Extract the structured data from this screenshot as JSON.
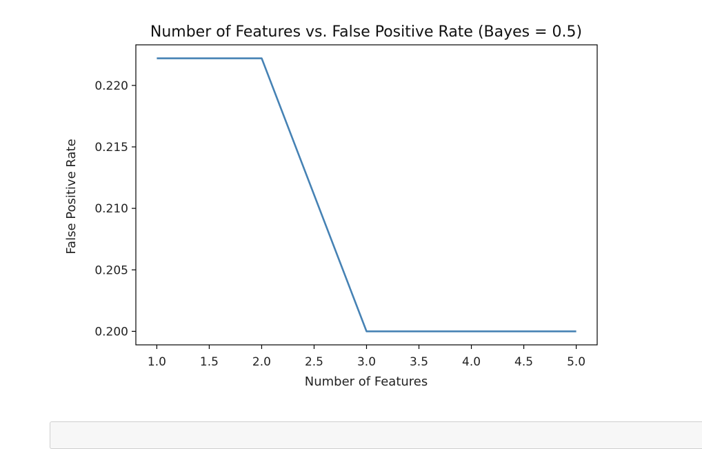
{
  "chart_data": {
    "type": "line",
    "title": "Number of Features vs. False Positive Rate (Bayes = 0.5)",
    "xlabel": "Number of Features",
    "ylabel": "False Positive Rate",
    "x": [
      1,
      2,
      3,
      4,
      5
    ],
    "series": [
      {
        "values": [
          0.2222,
          0.2222,
          0.2,
          0.2,
          0.2
        ],
        "color": "#4682b4"
      }
    ],
    "xlim": [
      0.8,
      5.2
    ],
    "ylim": [
      0.1989,
      0.2233
    ],
    "xticks": [
      "1.0",
      "1.5",
      "2.0",
      "2.5",
      "3.0",
      "3.5",
      "4.0",
      "4.5",
      "5.0"
    ],
    "yticks": [
      "0.200",
      "0.205",
      "0.210",
      "0.215",
      "0.220"
    ],
    "grid": false
  }
}
